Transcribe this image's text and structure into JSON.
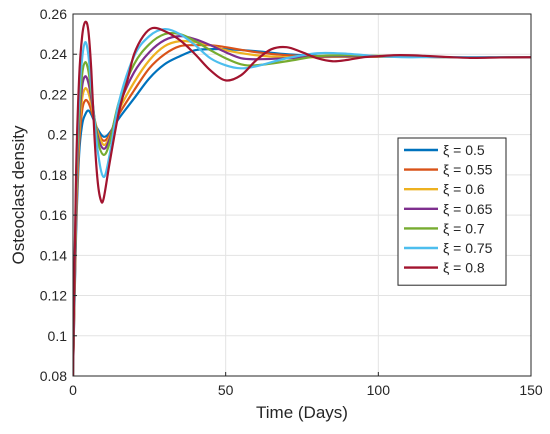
{
  "chart_data": {
    "type": "line",
    "title": "",
    "xlabel": "Time (Days)",
    "ylabel": "Osteoclast density",
    "xlim": [
      0,
      150
    ],
    "ylim": [
      0.08,
      0.26
    ],
    "xticks": [
      0,
      50,
      100,
      150
    ],
    "xtick_labels": [
      "0",
      "50",
      "100",
      "150"
    ],
    "yticks": [
      0.08,
      0.1,
      0.12,
      0.14,
      0.16,
      0.18,
      0.2,
      0.22,
      0.24,
      0.26
    ],
    "ytick_labels": [
      "0.08",
      "0.1",
      "0.12",
      "0.14",
      "0.16",
      "0.18",
      "0.2",
      "0.22",
      "0.24",
      "0.26"
    ],
    "grid": true,
    "legend_position": "right",
    "series": [
      {
        "name": "ξ = 0.5",
        "color": "#0072BD",
        "points": [
          [
            0,
            0.08
          ],
          [
            1,
            0.15
          ],
          [
            2,
            0.19
          ],
          [
            3,
            0.205
          ],
          [
            4,
            0.21
          ],
          [
            5,
            0.212
          ],
          [
            6,
            0.21
          ],
          [
            8,
            0.203
          ],
          [
            10,
            0.199
          ],
          [
            12,
            0.201
          ],
          [
            15,
            0.208
          ],
          [
            20,
            0.218
          ],
          [
            25,
            0.228
          ],
          [
            30,
            0.235
          ],
          [
            35,
            0.239
          ],
          [
            40,
            0.242
          ],
          [
            45,
            0.2425
          ],
          [
            50,
            0.2425
          ],
          [
            60,
            0.2415
          ],
          [
            70,
            0.24
          ],
          [
            80,
            0.2392
          ],
          [
            90,
            0.2388
          ],
          [
            100,
            0.2388
          ],
          [
            110,
            0.2388
          ],
          [
            120,
            0.2386
          ],
          [
            130,
            0.2385
          ],
          [
            140,
            0.2385
          ],
          [
            150,
            0.2385
          ]
        ]
      },
      {
        "name": "ξ = 0.55",
        "color": "#D95319",
        "points": [
          [
            0,
            0.08
          ],
          [
            1,
            0.155
          ],
          [
            2,
            0.195
          ],
          [
            3,
            0.212
          ],
          [
            4,
            0.217
          ],
          [
            5,
            0.216
          ],
          [
            6,
            0.212
          ],
          [
            8,
            0.202
          ],
          [
            10,
            0.197
          ],
          [
            12,
            0.2
          ],
          [
            15,
            0.21
          ],
          [
            20,
            0.222
          ],
          [
            25,
            0.233
          ],
          [
            30,
            0.24
          ],
          [
            35,
            0.244
          ],
          [
            40,
            0.2445
          ],
          [
            45,
            0.2445
          ],
          [
            50,
            0.2435
          ],
          [
            60,
            0.241
          ],
          [
            70,
            0.2395
          ],
          [
            80,
            0.239
          ],
          [
            90,
            0.2388
          ],
          [
            100,
            0.2388
          ],
          [
            120,
            0.2386
          ],
          [
            150,
            0.2385
          ]
        ]
      },
      {
        "name": "ξ = 0.6",
        "color": "#EDB120",
        "points": [
          [
            0,
            0.08
          ],
          [
            1,
            0.16
          ],
          [
            2,
            0.2
          ],
          [
            3,
            0.218
          ],
          [
            4,
            0.223
          ],
          [
            5,
            0.221
          ],
          [
            6,
            0.215
          ],
          [
            8,
            0.202
          ],
          [
            10,
            0.195
          ],
          [
            12,
            0.199
          ],
          [
            15,
            0.212
          ],
          [
            20,
            0.226
          ],
          [
            25,
            0.237
          ],
          [
            30,
            0.244
          ],
          [
            35,
            0.2465
          ],
          [
            40,
            0.246
          ],
          [
            45,
            0.2445
          ],
          [
            50,
            0.242
          ],
          [
            60,
            0.2395
          ],
          [
            70,
            0.2385
          ],
          [
            80,
            0.2385
          ],
          [
            90,
            0.2388
          ],
          [
            100,
            0.2388
          ],
          [
            120,
            0.2386
          ],
          [
            150,
            0.2385
          ]
        ]
      },
      {
        "name": "ξ = 0.65",
        "color": "#7E2F8E",
        "points": [
          [
            0,
            0.08
          ],
          [
            1,
            0.165
          ],
          [
            2,
            0.205
          ],
          [
            3,
            0.224
          ],
          [
            4,
            0.229
          ],
          [
            5,
            0.226
          ],
          [
            6,
            0.218
          ],
          [
            8,
            0.2
          ],
          [
            10,
            0.193
          ],
          [
            12,
            0.198
          ],
          [
            15,
            0.214
          ],
          [
            20,
            0.231
          ],
          [
            25,
            0.241
          ],
          [
            30,
            0.247
          ],
          [
            35,
            0.249
          ],
          [
            40,
            0.2475
          ],
          [
            45,
            0.2445
          ],
          [
            50,
            0.241
          ],
          [
            55,
            0.238
          ],
          [
            60,
            0.2375
          ],
          [
            70,
            0.238
          ],
          [
            80,
            0.2388
          ],
          [
            90,
            0.239
          ],
          [
            100,
            0.239
          ],
          [
            120,
            0.2386
          ],
          [
            150,
            0.2385
          ]
        ]
      },
      {
        "name": "ξ = 0.7",
        "color": "#77AC30",
        "points": [
          [
            0,
            0.08
          ],
          [
            1,
            0.17
          ],
          [
            2,
            0.21
          ],
          [
            3,
            0.23
          ],
          [
            4,
            0.236
          ],
          [
            5,
            0.232
          ],
          [
            6,
            0.221
          ],
          [
            8,
            0.198
          ],
          [
            10,
            0.19
          ],
          [
            12,
            0.196
          ],
          [
            15,
            0.216
          ],
          [
            20,
            0.235
          ],
          [
            25,
            0.245
          ],
          [
            30,
            0.25
          ],
          [
            35,
            0.25
          ],
          [
            40,
            0.2465
          ],
          [
            45,
            0.242
          ],
          [
            50,
            0.238
          ],
          [
            55,
            0.235
          ],
          [
            60,
            0.2345
          ],
          [
            70,
            0.2365
          ],
          [
            80,
            0.239
          ],
          [
            90,
            0.2395
          ],
          [
            100,
            0.2392
          ],
          [
            120,
            0.2386
          ],
          [
            150,
            0.2385
          ]
        ]
      },
      {
        "name": "ξ = 0.75",
        "color": "#4DBEEE",
        "points": [
          [
            0,
            0.08
          ],
          [
            1,
            0.175
          ],
          [
            2,
            0.218
          ],
          [
            3,
            0.238
          ],
          [
            4,
            0.246
          ],
          [
            5,
            0.24
          ],
          [
            6,
            0.224
          ],
          [
            8,
            0.193
          ],
          [
            10,
            0.179
          ],
          [
            12,
            0.19
          ],
          [
            15,
            0.216
          ],
          [
            20,
            0.239
          ],
          [
            25,
            0.249
          ],
          [
            30,
            0.2525
          ],
          [
            35,
            0.25
          ],
          [
            40,
            0.2445
          ],
          [
            45,
            0.238
          ],
          [
            50,
            0.2345
          ],
          [
            55,
            0.233
          ],
          [
            60,
            0.234
          ],
          [
            70,
            0.238
          ],
          [
            80,
            0.2405
          ],
          [
            90,
            0.2402
          ],
          [
            100,
            0.239
          ],
          [
            110,
            0.2385
          ],
          [
            120,
            0.2386
          ],
          [
            150,
            0.2385
          ]
        ]
      },
      {
        "name": "ξ = 0.8",
        "color": "#A2142F",
        "points": [
          [
            0,
            0.08
          ],
          [
            1,
            0.18
          ],
          [
            2,
            0.228
          ],
          [
            3,
            0.249
          ],
          [
            4,
            0.256
          ],
          [
            5,
            0.252
          ],
          [
            6,
            0.232
          ],
          [
            7,
            0.2
          ],
          [
            8,
            0.178
          ],
          [
            9,
            0.168
          ],
          [
            10,
            0.168
          ],
          [
            12,
            0.186
          ],
          [
            15,
            0.211
          ],
          [
            18,
            0.228
          ],
          [
            20,
            0.24
          ],
          [
            23,
            0.249
          ],
          [
            26,
            0.253
          ],
          [
            30,
            0.2515
          ],
          [
            35,
            0.247
          ],
          [
            40,
            0.24
          ],
          [
            45,
            0.232
          ],
          [
            50,
            0.227
          ],
          [
            55,
            0.2295
          ],
          [
            60,
            0.237
          ],
          [
            65,
            0.2425
          ],
          [
            70,
            0.2435
          ],
          [
            75,
            0.241
          ],
          [
            80,
            0.238
          ],
          [
            85,
            0.2365
          ],
          [
            90,
            0.2372
          ],
          [
            95,
            0.2385
          ],
          [
            100,
            0.239
          ],
          [
            105,
            0.2395
          ],
          [
            110,
            0.2395
          ],
          [
            115,
            0.2392
          ],
          [
            120,
            0.2388
          ],
          [
            130,
            0.2382
          ],
          [
            140,
            0.2384
          ],
          [
            150,
            0.2385
          ]
        ]
      }
    ]
  }
}
